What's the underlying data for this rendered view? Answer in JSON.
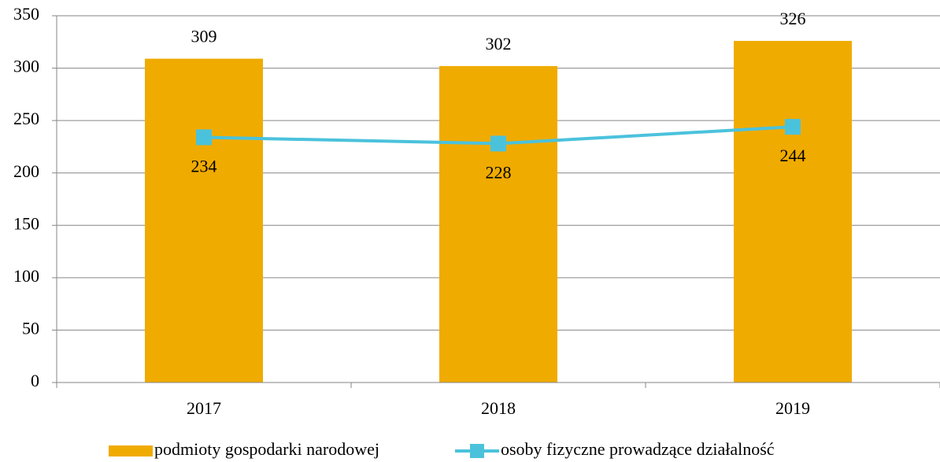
{
  "chart_data": {
    "type": "bar",
    "categories": [
      "2017",
      "2018",
      "2019"
    ],
    "series": [
      {
        "name": "podmioty gospodarki narodowej",
        "type": "bar",
        "color": "#f0ab00",
        "values": [
          309,
          302,
          326
        ]
      },
      {
        "name": "osoby fizyczne prowadzące działalność",
        "type": "line",
        "color": "#4bc2dc",
        "values": [
          234,
          228,
          244
        ]
      }
    ],
    "ylim": [
      0,
      350
    ],
    "yticks": [
      0,
      50,
      100,
      150,
      200,
      250,
      300,
      350
    ],
    "grid": true,
    "legend": "bottom"
  }
}
